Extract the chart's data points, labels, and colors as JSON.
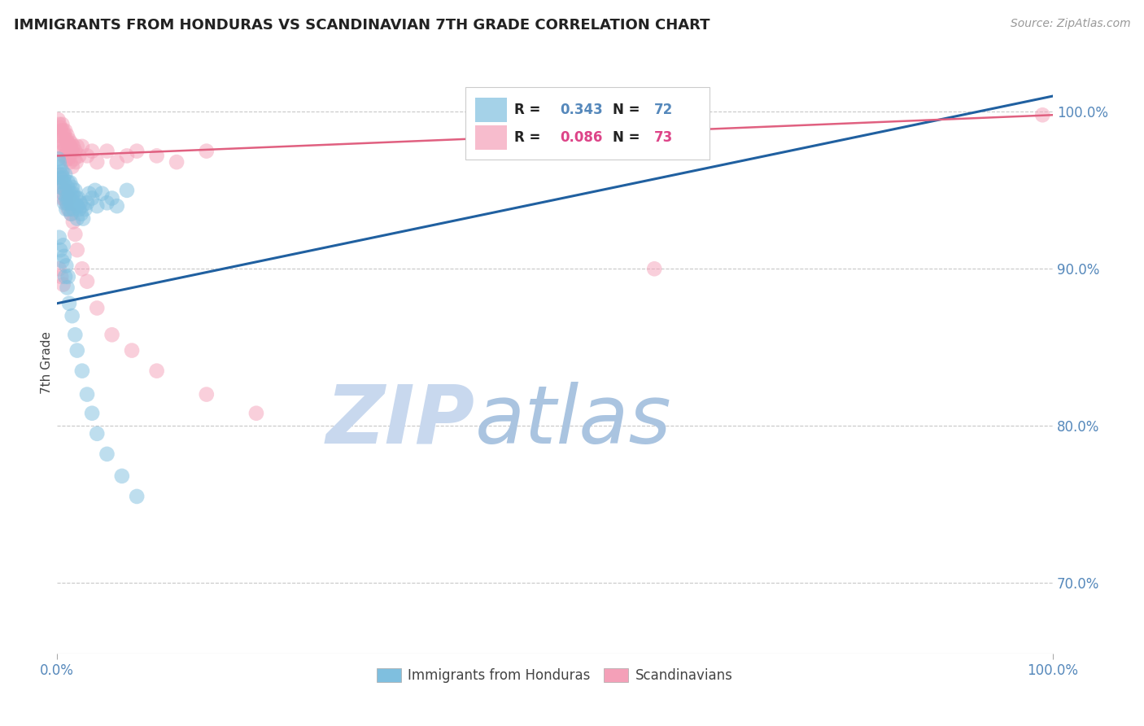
{
  "title": "IMMIGRANTS FROM HONDURAS VS SCANDINAVIAN 7TH GRADE CORRELATION CHART",
  "source": "Source: ZipAtlas.com",
  "ylabel": "7th Grade",
  "xlim": [
    0.0,
    1.0
  ],
  "ylim": [
    0.655,
    1.025
  ],
  "yticks": [
    0.7,
    0.8,
    0.9,
    1.0
  ],
  "ytick_labels": [
    "70.0%",
    "80.0%",
    "90.0%",
    "100.0%"
  ],
  "blue_R": 0.343,
  "blue_N": 72,
  "pink_R": 0.086,
  "pink_N": 73,
  "blue_color": "#7fbfdf",
  "pink_color": "#f4a0b8",
  "blue_line_color": "#2060a0",
  "pink_line_color": "#e06080",
  "grid_color": "#c8c8c8",
  "title_color": "#222222",
  "axis_label_color": "#444444",
  "tick_color": "#5588bb",
  "watermark_zip": "ZIP",
  "watermark_atlas": "atlas",
  "watermark_color_zip": "#c8d8ee",
  "watermark_color_atlas": "#aac4e0",
  "legend_label_blue": "Immigrants from Honduras",
  "legend_label_pink": "Scandinavians",
  "blue_scatter_x": [
    0.001,
    0.002,
    0.003,
    0.003,
    0.004,
    0.004,
    0.005,
    0.005,
    0.006,
    0.006,
    0.007,
    0.007,
    0.008,
    0.008,
    0.009,
    0.009,
    0.01,
    0.01,
    0.011,
    0.011,
    0.012,
    0.012,
    0.013,
    0.013,
    0.014,
    0.014,
    0.015,
    0.015,
    0.016,
    0.016,
    0.017,
    0.018,
    0.019,
    0.02,
    0.02,
    0.021,
    0.022,
    0.023,
    0.024,
    0.025,
    0.026,
    0.028,
    0.03,
    0.032,
    0.035,
    0.038,
    0.04,
    0.045,
    0.05,
    0.055,
    0.06,
    0.07,
    0.002,
    0.003,
    0.005,
    0.006,
    0.007,
    0.008,
    0.009,
    0.01,
    0.011,
    0.012,
    0.015,
    0.018,
    0.02,
    0.025,
    0.03,
    0.035,
    0.04,
    0.05,
    0.065,
    0.08
  ],
  "blue_scatter_y": [
    0.97,
    0.968,
    0.965,
    0.958,
    0.96,
    0.952,
    0.962,
    0.955,
    0.958,
    0.948,
    0.955,
    0.942,
    0.96,
    0.95,
    0.945,
    0.938,
    0.952,
    0.942,
    0.955,
    0.945,
    0.948,
    0.938,
    0.955,
    0.942,
    0.948,
    0.935,
    0.952,
    0.942,
    0.948,
    0.938,
    0.942,
    0.95,
    0.945,
    0.94,
    0.932,
    0.945,
    0.938,
    0.942,
    0.935,
    0.94,
    0.932,
    0.938,
    0.942,
    0.948,
    0.945,
    0.95,
    0.94,
    0.948,
    0.942,
    0.945,
    0.94,
    0.95,
    0.92,
    0.912,
    0.905,
    0.915,
    0.908,
    0.895,
    0.902,
    0.888,
    0.895,
    0.878,
    0.87,
    0.858,
    0.848,
    0.835,
    0.82,
    0.808,
    0.795,
    0.782,
    0.768,
    0.755
  ],
  "pink_scatter_x": [
    0.001,
    0.002,
    0.002,
    0.003,
    0.003,
    0.004,
    0.004,
    0.005,
    0.005,
    0.006,
    0.006,
    0.007,
    0.007,
    0.008,
    0.008,
    0.009,
    0.009,
    0.01,
    0.01,
    0.011,
    0.011,
    0.012,
    0.012,
    0.013,
    0.013,
    0.014,
    0.015,
    0.015,
    0.016,
    0.017,
    0.018,
    0.019,
    0.02,
    0.022,
    0.025,
    0.03,
    0.035,
    0.04,
    0.05,
    0.06,
    0.07,
    0.08,
    0.1,
    0.12,
    0.15,
    0.002,
    0.003,
    0.004,
    0.005,
    0.006,
    0.007,
    0.008,
    0.009,
    0.01,
    0.011,
    0.012,
    0.014,
    0.016,
    0.018,
    0.02,
    0.025,
    0.03,
    0.04,
    0.055,
    0.075,
    0.1,
    0.15,
    0.2,
    0.002,
    0.004,
    0.006,
    0.6,
    0.99
  ],
  "pink_scatter_y": [
    0.995,
    0.992,
    0.985,
    0.99,
    0.982,
    0.988,
    0.978,
    0.992,
    0.98,
    0.988,
    0.975,
    0.985,
    0.972,
    0.988,
    0.978,
    0.982,
    0.97,
    0.985,
    0.975,
    0.98,
    0.97,
    0.982,
    0.972,
    0.978,
    0.968,
    0.98,
    0.975,
    0.965,
    0.978,
    0.97,
    0.975,
    0.968,
    0.978,
    0.972,
    0.978,
    0.972,
    0.975,
    0.968,
    0.975,
    0.968,
    0.972,
    0.975,
    0.972,
    0.968,
    0.975,
    0.96,
    0.952,
    0.958,
    0.945,
    0.952,
    0.945,
    0.95,
    0.942,
    0.948,
    0.938,
    0.945,
    0.935,
    0.93,
    0.922,
    0.912,
    0.9,
    0.892,
    0.875,
    0.858,
    0.848,
    0.835,
    0.82,
    0.808,
    0.9,
    0.895,
    0.89,
    0.9,
    0.998
  ],
  "blue_line_x": [
    0.0,
    1.0
  ],
  "blue_line_y": [
    0.878,
    1.01
  ],
  "pink_line_x": [
    0.0,
    1.0
  ],
  "pink_line_y": [
    0.972,
    0.998
  ]
}
